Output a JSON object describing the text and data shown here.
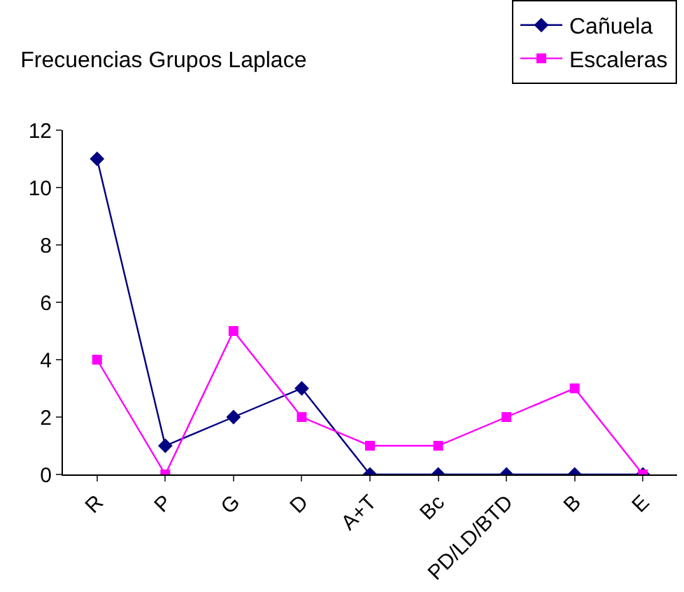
{
  "chart_data": {
    "type": "line",
    "title": "Frecuencias Grupos Laplace",
    "categories": [
      "R",
      "P",
      "G",
      "D",
      "A+T",
      "Bc",
      "PD/LD/BTD",
      "B",
      "E"
    ],
    "series": [
      {
        "name": "Cañuela",
        "color": "#000080",
        "marker": "diamond",
        "values": [
          11,
          1,
          2,
          3,
          0,
          0,
          0,
          0,
          0
        ]
      },
      {
        "name": "Escaleras",
        "color": "#ff00ff",
        "marker": "square",
        "values": [
          4,
          0,
          5,
          2,
          1,
          1,
          2,
          3,
          0
        ]
      }
    ],
    "ylim": [
      0,
      12
    ],
    "yticks": [
      0,
      2,
      4,
      6,
      8,
      10,
      12
    ],
    "grid": false,
    "legend": "top right",
    "line_style": "solid"
  }
}
